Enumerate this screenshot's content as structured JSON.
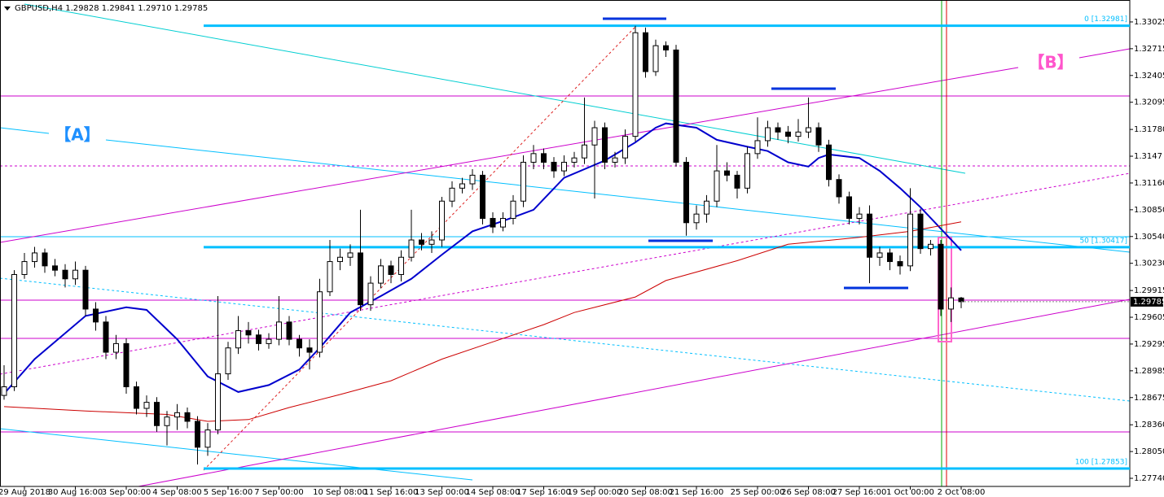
{
  "chart_data": {
    "type": "candlestick",
    "title": "GBPUSD,H4  1.29828 1.29841 1.29710 1.29785",
    "annotations": [
      "【A】",
      "【B】"
    ],
    "ylim": [
      1.27646,
      1.33279
    ],
    "xlim": [
      -0.4,
      110.56
    ],
    "yticks": [
      1.33025,
      1.32715,
      1.32405,
      1.32095,
      {
        "value": 1.3178,
        "label": "1.31780"
      },
      1.3147,
      {
        "value": 1.3116,
        "label": "1.31160"
      },
      {
        "value": 1.3085,
        "label": "1.30850"
      },
      {
        "value": 1.3054,
        "label": "1.30540"
      },
      {
        "value": 1.3023,
        "label": "1.30230"
      },
      1.29915,
      1.29605,
      1.29295,
      1.28985,
      1.28675,
      {
        "value": 1.2836,
        "label": "1.28360"
      },
      {
        "value": 1.2805,
        "label": "1.28050"
      },
      {
        "value": 1.2774,
        "label": "1.27740"
      }
    ],
    "xticks": [
      {
        "value": 2,
        "label": "29 Aug 2018"
      },
      {
        "value": 7,
        "label": "30 Aug 16:00"
      },
      {
        "value": 12,
        "label": "3 Sep 00:00"
      },
      {
        "value": 17,
        "label": "4 Sep 08:00"
      },
      {
        "value": 22,
        "label": "5 Sep 16:00"
      },
      {
        "value": 27,
        "label": "7 Sep 00:00"
      },
      {
        "value": 33,
        "label": "10 Sep 08:00"
      },
      {
        "value": 38,
        "label": "11 Sep 16:00"
      },
      {
        "value": 43,
        "label": "13 Sep 00:00"
      },
      {
        "value": 48,
        "label": "14 Sep 08:00"
      },
      {
        "value": 53,
        "label": "17 Sep 16:00"
      },
      {
        "value": 58,
        "label": "19 Sep 00:00"
      },
      {
        "value": 63,
        "label": "20 Sep 08:00"
      },
      {
        "value": 68,
        "label": "21 Sep 16:00"
      },
      {
        "value": 74,
        "label": "25 Sep 00:00"
      },
      {
        "value": 79,
        "label": "26 Sep 08:00"
      },
      {
        "value": 84,
        "label": "27 Sep 16:00"
      },
      {
        "value": 89,
        "label": "1 Oct 00:00"
      },
      {
        "value": 94,
        "label": "2 Oct 08:00"
      }
    ],
    "last_price": 1.29785,
    "fib_levels": [
      {
        "value": 1.32981,
        "label": "0 [1.32981]"
      },
      {
        "value": 1.30417,
        "label": "50 [1.30417]"
      },
      {
        "value": 1.27853,
        "label": "100 [1.27853]"
      }
    ],
    "fib_color": "#00bfff",
    "up_color": "#ffffff",
    "down_color": "#000000",
    "ohlc": [
      [
        1.287,
        1.2905,
        1.2865,
        1.288
      ],
      [
        1.288,
        1.3015,
        1.2875,
        1.301
      ],
      [
        1.301,
        1.3035,
        1.3005,
        1.3025
      ],
      [
        1.3025,
        1.3042,
        1.3018,
        1.3035
      ],
      [
        1.3035,
        1.304,
        1.3012,
        1.302
      ],
      [
        1.302,
        1.3028,
        1.3008,
        1.3015
      ],
      [
        1.3015,
        1.3022,
        1.2995,
        1.3005
      ],
      [
        1.3005,
        1.3025,
        1.2998,
        1.3015
      ],
      [
        1.3015,
        1.302,
        1.2962,
        1.297
      ],
      [
        1.297,
        1.2978,
        1.2945,
        1.2955
      ],
      [
        1.2955,
        1.2962,
        1.2912,
        1.292
      ],
      [
        1.292,
        1.294,
        1.2912,
        1.293
      ],
      [
        1.293,
        1.2936,
        1.2872,
        1.288
      ],
      [
        1.288,
        1.2886,
        1.2848,
        1.2855
      ],
      [
        1.2855,
        1.287,
        1.2845,
        1.2862
      ],
      [
        1.2862,
        1.2868,
        1.2828,
        1.2835
      ],
      [
        1.2835,
        1.2852,
        1.2812,
        1.2845
      ],
      [
        1.2845,
        1.286,
        1.283,
        1.285
      ],
      [
        1.285,
        1.2856,
        1.2832,
        1.284
      ],
      [
        1.284,
        1.2846,
        1.279,
        1.281
      ],
      [
        1.281,
        1.2838,
        1.28,
        1.283
      ],
      [
        1.283,
        1.2985,
        1.2825,
        1.2895
      ],
      [
        1.2895,
        1.2932,
        1.2888,
        1.2925
      ],
      [
        1.2925,
        1.2962,
        1.2918,
        1.2945
      ],
      [
        1.2945,
        1.2955,
        1.293,
        1.294
      ],
      [
        1.294,
        1.2946,
        1.2922,
        1.293
      ],
      [
        1.293,
        1.2942,
        1.2924,
        1.2935
      ],
      [
        1.2935,
        1.2985,
        1.2928,
        1.2955
      ],
      [
        1.2955,
        1.2962,
        1.2928,
        1.2935
      ],
      [
        1.2935,
        1.294,
        1.2915,
        1.2925
      ],
      [
        1.2925,
        1.2935,
        1.29,
        1.292
      ],
      [
        1.292,
        1.3005,
        1.2914,
        1.299
      ],
      [
        1.299,
        1.305,
        1.2985,
        1.3025
      ],
      [
        1.3025,
        1.304,
        1.3015,
        1.303
      ],
      [
        1.303,
        1.3045,
        1.302,
        1.3035
      ],
      [
        1.3035,
        1.3085,
        1.2968,
        1.2975
      ],
      [
        1.2975,
        1.3008,
        1.2968,
        1.3
      ],
      [
        1.3,
        1.3028,
        1.2994,
        1.302
      ],
      [
        1.302,
        1.3026,
        1.3,
        1.301
      ],
      [
        1.301,
        1.3038,
        1.3002,
        1.303
      ],
      [
        1.303,
        1.3085,
        1.3025,
        1.305
      ],
      [
        1.305,
        1.3058,
        1.3038,
        1.3045
      ],
      [
        1.3045,
        1.306,
        1.3035,
        1.305
      ],
      [
        1.305,
        1.31,
        1.3042,
        1.3095
      ],
      [
        1.3095,
        1.3118,
        1.3088,
        1.311
      ],
      [
        1.311,
        1.3122,
        1.3104,
        1.3115
      ],
      [
        1.3115,
        1.3132,
        1.3108,
        1.3125
      ],
      [
        1.3125,
        1.313,
        1.3068,
        1.3075
      ],
      [
        1.3075,
        1.3082,
        1.3058,
        1.3065
      ],
      [
        1.3065,
        1.3082,
        1.306,
        1.3075
      ],
      [
        1.3075,
        1.3102,
        1.3068,
        1.3095
      ],
      [
        1.3095,
        1.3148,
        1.3088,
        1.314
      ],
      [
        1.314,
        1.316,
        1.3132,
        1.315
      ],
      [
        1.315,
        1.3156,
        1.3132,
        1.314
      ],
      [
        1.314,
        1.3146,
        1.3122,
        1.313
      ],
      [
        1.313,
        1.3148,
        1.3124,
        1.314
      ],
      [
        1.314,
        1.3152,
        1.3134,
        1.3145
      ],
      [
        1.3145,
        1.3215,
        1.3138,
        1.316
      ],
      [
        1.316,
        1.3188,
        1.3098,
        1.318
      ],
      [
        1.318,
        1.3186,
        1.3132,
        1.314
      ],
      [
        1.314,
        1.3152,
        1.3134,
        1.3145
      ],
      [
        1.3145,
        1.3178,
        1.3138,
        1.317
      ],
      [
        1.317,
        1.3298,
        1.3164,
        1.329
      ],
      [
        1.329,
        1.3296,
        1.3238,
        1.3245
      ],
      [
        1.3245,
        1.3282,
        1.324,
        1.3275
      ],
      [
        1.3275,
        1.328,
        1.3262,
        1.327
      ],
      [
        1.327,
        1.3276,
        1.3135,
        1.314
      ],
      [
        1.314,
        1.3146,
        1.3055,
        1.307
      ],
      [
        1.307,
        1.309,
        1.3062,
        1.308
      ],
      [
        1.308,
        1.3102,
        1.307,
        1.3095
      ],
      [
        1.3095,
        1.316,
        1.3088,
        1.313
      ],
      [
        1.313,
        1.314,
        1.3118,
        1.3125
      ],
      [
        1.3125,
        1.313,
        1.3098,
        1.311
      ],
      [
        1.311,
        1.3158,
        1.3104,
        1.315
      ],
      [
        1.315,
        1.3192,
        1.3144,
        1.3165
      ],
      [
        1.3165,
        1.3188,
        1.3158,
        1.318
      ],
      [
        1.318,
        1.3186,
        1.3166,
        1.3175
      ],
      [
        1.3175,
        1.3182,
        1.3162,
        1.317
      ],
      [
        1.317,
        1.319,
        1.3164,
        1.3175
      ],
      [
        1.3175,
        1.3215,
        1.3168,
        1.318
      ],
      [
        1.318,
        1.3186,
        1.3152,
        1.316
      ],
      [
        1.316,
        1.3166,
        1.3112,
        1.312
      ],
      [
        1.312,
        1.3126,
        1.3092,
        1.31
      ],
      [
        1.31,
        1.3106,
        1.3068,
        1.3075
      ],
      [
        1.3075,
        1.3088,
        1.3068,
        1.308
      ],
      [
        1.308,
        1.309,
        1.3,
        1.303
      ],
      [
        1.303,
        1.3042,
        1.302,
        1.3035
      ],
      [
        1.3035,
        1.304,
        1.3015,
        1.3025
      ],
      [
        1.3025,
        1.3032,
        1.301,
        1.302
      ],
      [
        1.302,
        1.311,
        1.3014,
        1.308
      ],
      [
        1.308,
        1.3086,
        1.3034,
        1.304
      ],
      [
        1.304,
        1.305,
        1.3032,
        1.3045
      ],
      [
        1.3045,
        1.305,
        1.2962,
        1.297
      ],
      [
        1.297,
        1.2995,
        1.2955,
        1.2983
      ],
      [
        1.29828,
        1.29841,
        1.2971,
        1.29785
      ]
    ],
    "series": [
      {
        "color": "#0000cd",
        "x": [
          0,
          3,
          8,
          12,
          14,
          17,
          20,
          23,
          26,
          29,
          31,
          34,
          37,
          40,
          43,
          46,
          49,
          52,
          55,
          59,
          62,
          64,
          65,
          68,
          70,
          73,
          75,
          77,
          79,
          80,
          81,
          84,
          86,
          88,
          90,
          92,
          94
        ],
        "values": [
          1.2872,
          1.2912,
          1.2962,
          1.2972,
          1.2969,
          1.2935,
          1.2892,
          1.2874,
          1.2882,
          1.29,
          1.2925,
          1.2966,
          1.2985,
          1.3005,
          1.3033,
          1.306,
          1.3072,
          1.3085,
          1.3122,
          1.3142,
          1.3163,
          1.318,
          1.3185,
          1.318,
          1.3166,
          1.3158,
          1.3153,
          1.314,
          1.3135,
          1.3145,
          1.3149,
          1.3145,
          1.313,
          1.311,
          1.3088,
          1.3063,
          1.3038
        ]
      },
      {
        "color": "#cc0000",
        "x": [
          0,
          8,
          16,
          20,
          24,
          28,
          33,
          38,
          43,
          48,
          53,
          56,
          62,
          65,
          72,
          77,
          84,
          89,
          94
        ],
        "values": [
          1.2857,
          1.2852,
          1.2848,
          1.284,
          1.2842,
          1.2856,
          1.2871,
          1.2887,
          1.2912,
          1.2932,
          1.2952,
          1.2966,
          1.2984,
          1.3003,
          1.3026,
          1.3045,
          1.3053,
          1.306,
          1.3071
        ]
      }
    ]
  }
}
